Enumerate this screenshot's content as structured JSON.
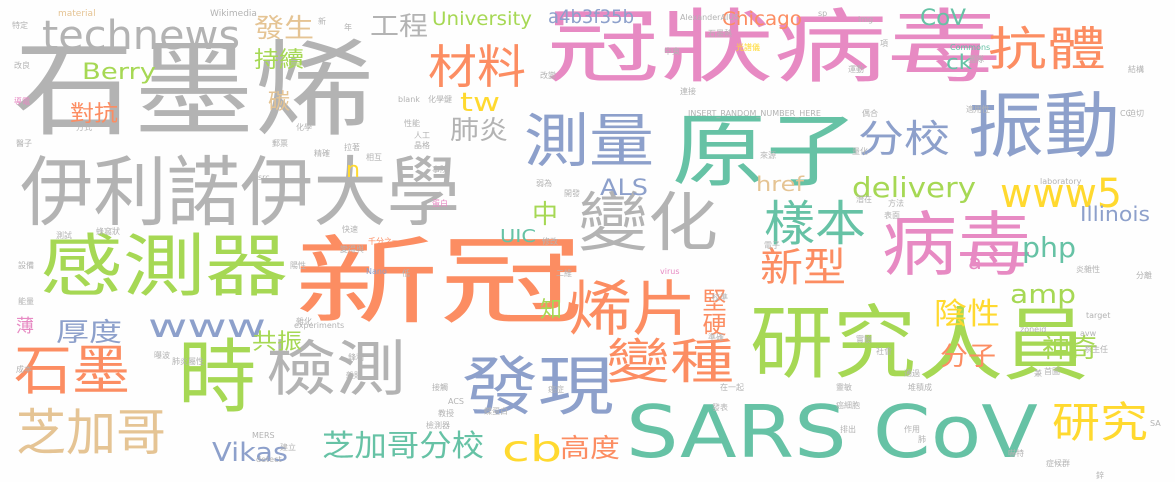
{
  "palette": {
    "gray": "#b3b3b3",
    "orange": "#fc8d62",
    "green": "#a6d854",
    "pink": "#e78ac3",
    "blue": "#8da0cb",
    "teal": "#66c2a5",
    "yellow": "#ffd92f",
    "tan": "#e5c494"
  },
  "words": [
    {
      "text": "石墨烯",
      "color": "gray"
    },
    {
      "text": "冠狀病毒",
      "color": "pink"
    },
    {
      "text": "technews",
      "color": "gray"
    },
    {
      "text": "伊利諾伊大學",
      "color": "gray"
    },
    {
      "text": "原子",
      "color": "teal"
    },
    {
      "text": "振動",
      "color": "blue"
    },
    {
      "text": "抗體",
      "color": "orange"
    },
    {
      "text": "測量",
      "color": "blue"
    },
    {
      "text": "材料",
      "color": "orange"
    },
    {
      "text": "工程",
      "color": "gray"
    },
    {
      "text": "發生",
      "color": "tan"
    },
    {
      "text": "持續",
      "color": "green"
    },
    {
      "text": "Berry",
      "color": "green"
    },
    {
      "text": "University",
      "color": "green"
    },
    {
      "text": "a4b3f35b",
      "color": "blue"
    },
    {
      "text": "Chicago",
      "color": "orange"
    },
    {
      "text": "CoV",
      "color": "teal"
    },
    {
      "text": "分校",
      "color": "blue"
    },
    {
      "text": "變化",
      "color": "gray"
    },
    {
      "text": "樣本",
      "color": "teal"
    },
    {
      "text": "病毒",
      "color": "pink"
    },
    {
      "text": "www5",
      "color": "yellow"
    },
    {
      "text": "delivery",
      "color": "green"
    },
    {
      "text": "感測器",
      "color": "green"
    },
    {
      "text": "新冠",
      "color": "orange"
    },
    {
      "text": "烯片",
      "color": "orange"
    },
    {
      "text": "新型",
      "color": "orange"
    },
    {
      "text": "php",
      "color": "teal"
    },
    {
      "text": "amp",
      "color": "green"
    },
    {
      "text": "www",
      "color": "blue"
    },
    {
      "text": "厚度",
      "color": "blue"
    },
    {
      "text": "石墨",
      "color": "orange"
    },
    {
      "text": "時",
      "color": "green"
    },
    {
      "text": "檢測",
      "color": "gray"
    },
    {
      "text": "發現",
      "color": "blue"
    },
    {
      "text": "研究",
      "color": "green"
    },
    {
      "text": "人員",
      "color": "green"
    },
    {
      "text": "SARS CoV",
      "color": "teal"
    },
    {
      "text": "芝加哥",
      "color": "tan"
    },
    {
      "text": "芝加哥分校",
      "color": "teal"
    },
    {
      "text": "Vikas",
      "color": "blue"
    },
    {
      "text": "cb",
      "color": "yellow"
    },
    {
      "text": "高度",
      "color": "orange"
    },
    {
      "text": "變種",
      "color": "orange"
    },
    {
      "text": "陰性",
      "color": "yellow"
    },
    {
      "text": "分子",
      "color": "orange"
    },
    {
      "text": "神奇",
      "color": "green"
    },
    {
      "text": "研究",
      "color": "yellow"
    },
    {
      "text": "肺炎",
      "color": "gray"
    },
    {
      "text": "tw",
      "color": "yellow"
    },
    {
      "text": "中",
      "color": "green"
    },
    {
      "text": "ALS",
      "color": "blue"
    },
    {
      "text": "href",
      "color": "tan"
    },
    {
      "text": "UIC",
      "color": "teal"
    },
    {
      "text": "Illinois",
      "color": "blue"
    },
    {
      "text": "堅硬",
      "color": "orange"
    },
    {
      "text": "共振",
      "color": "green"
    },
    {
      "text": "知",
      "color": "green"
    },
    {
      "text": "對抗",
      "color": "orange"
    },
    {
      "text": "碳",
      "color": "tan"
    },
    {
      "text": "ck",
      "color": "teal"
    },
    {
      "text": "a",
      "color": "pink"
    },
    {
      "text": "n",
      "color": "yellow"
    },
    {
      "text": "薄",
      "color": "pink"
    },
    {
      "text": "material",
      "color": "tan"
    },
    {
      "text": "Wikimedia",
      "color": "gray"
    },
    {
      "text": "AlexanderAIUS",
      "color": "gray"
    },
    {
      "text": "sp",
      "color": "gray"
    },
    {
      "text": "img",
      "color": "gray"
    },
    {
      "text": "Commons",
      "color": "teal"
    },
    {
      "text": "石墨熱",
      "color": "gray"
    },
    {
      "text": "光譜儀",
      "color": "yellow"
    },
    {
      "text": "INSERT_RANDOM_NUMBER_HERE",
      "color": "gray"
    },
    {
      "text": "blank",
      "color": "gray"
    },
    {
      "text": "化學鍵",
      "color": "gray"
    },
    {
      "text": "laboratory",
      "color": "gray"
    },
    {
      "text": "Nano",
      "color": "blue"
    },
    {
      "text": "experiments",
      "color": "gray"
    },
    {
      "text": "zoneid",
      "color": "gray"
    },
    {
      "text": "avw",
      "color": "gray"
    },
    {
      "text": "target",
      "color": "gray"
    },
    {
      "text": "virus",
      "color": "pink"
    },
    {
      "text": "ACS",
      "color": "gray"
    },
    {
      "text": "MERS",
      "color": "gray"
    },
    {
      "text": "detect",
      "color": "gray"
    },
    {
      "text": "SA",
      "color": "gray"
    },
    {
      "text": "CC",
      "color": "gray"
    },
    {
      "text": "src",
      "color": "gray"
    },
    {
      "text": "特定",
      "color": "gray"
    },
    {
      "text": "改良",
      "color": "gray"
    },
    {
      "text": "導電",
      "color": "pink"
    },
    {
      "text": "方式",
      "color": "gray"
    },
    {
      "text": "醫子",
      "color": "gray"
    },
    {
      "text": "測試",
      "color": "gray"
    },
    {
      "text": "設備",
      "color": "gray"
    },
    {
      "text": "能量",
      "color": "gray"
    },
    {
      "text": "成本",
      "color": "gray"
    },
    {
      "text": "蜂窩狀",
      "color": "gray"
    },
    {
      "text": "快速",
      "color": "gray"
    },
    {
      "text": "新",
      "color": "gray"
    },
    {
      "text": "年",
      "color": "gray"
    },
    {
      "text": "化學",
      "color": "gray"
    },
    {
      "text": "性能",
      "color": "gray"
    },
    {
      "text": "人工",
      "color": "gray"
    },
    {
      "text": "相互",
      "color": "gray"
    },
    {
      "text": "晶格",
      "color": "gray"
    },
    {
      "text": "事院",
      "color": "gray"
    },
    {
      "text": "郵票",
      "color": "gray"
    },
    {
      "text": "精確",
      "color": "gray"
    },
    {
      "text": "拉著",
      "color": "gray"
    },
    {
      "text": "弱為",
      "color": "gray"
    },
    {
      "text": "開發",
      "color": "gray"
    },
    {
      "text": "蛋白",
      "color": "pink"
    },
    {
      "text": "表面",
      "color": "gray"
    },
    {
      "text": "方法",
      "color": "gray"
    },
    {
      "text": "潛在",
      "color": "gray"
    },
    {
      "text": "千分之一",
      "color": "orange"
    },
    {
      "text": "變得與",
      "color": "gray"
    },
    {
      "text": "修改",
      "color": "gray"
    },
    {
      "text": "電子",
      "color": "gray"
    },
    {
      "text": "二維",
      "color": "gray"
    },
    {
      "text": "檢測器",
      "color": "gray"
    },
    {
      "text": "建立",
      "color": "gray"
    },
    {
      "text": "教授",
      "color": "gray"
    },
    {
      "text": "蝶蛋白",
      "color": "gray"
    },
    {
      "text": "癌症",
      "color": "gray"
    },
    {
      "text": "團隊",
      "color": "gray"
    },
    {
      "text": "結構",
      "color": "gray"
    },
    {
      "text": "迫切",
      "color": "gray"
    },
    {
      "text": "適用性",
      "color": "gray"
    },
    {
      "text": "偶合",
      "color": "gray"
    },
    {
      "text": "量化",
      "color": "gray"
    },
    {
      "text": "運動",
      "color": "gray"
    },
    {
      "text": "連接",
      "color": "gray"
    },
    {
      "text": "中東",
      "color": "gray"
    },
    {
      "text": "改變",
      "color": "gray"
    },
    {
      "text": "項",
      "color": "gray"
    },
    {
      "text": "分離",
      "color": "gray"
    },
    {
      "text": "炎雜性",
      "color": "gray"
    },
    {
      "text": "實驗",
      "color": "gray"
    },
    {
      "text": "社會",
      "color": "gray"
    },
    {
      "text": "系主任",
      "color": "gray"
    },
    {
      "text": "首圖",
      "color": "gray"
    },
    {
      "text": "通過",
      "color": "gray"
    },
    {
      "text": "堆積成",
      "color": "gray"
    },
    {
      "text": "癌細胞",
      "color": "gray"
    },
    {
      "text": "排出",
      "color": "gray"
    },
    {
      "text": "作用",
      "color": "gray"
    },
    {
      "text": "肺",
      "color": "gray"
    },
    {
      "text": "症候群",
      "color": "gray"
    },
    {
      "text": "嚇特",
      "color": "gray"
    },
    {
      "text": "在一起",
      "color": "gray"
    },
    {
      "text": "發表",
      "color": "gray"
    },
    {
      "text": "靈敏",
      "color": "gray"
    },
    {
      "text": "準確",
      "color": "gray"
    },
    {
      "text": "校準",
      "color": "gray"
    },
    {
      "text": "接觸",
      "color": "gray"
    },
    {
      "text": "雜貼",
      "color": "gray"
    },
    {
      "text": "鋒利",
      "color": "gray"
    },
    {
      "text": "雜化",
      "color": "gray"
    },
    {
      "text": "曝波",
      "color": "gray"
    },
    {
      "text": "肺炎屬性",
      "color": "gray"
    },
    {
      "text": "陽性",
      "color": "gray"
    },
    {
      "text": "低",
      "color": "gray"
    },
    {
      "text": "兼",
      "color": "gray"
    },
    {
      "text": "鋅",
      "color": "gray"
    },
    {
      "text": "來源",
      "color": "gray"
    }
  ]
}
